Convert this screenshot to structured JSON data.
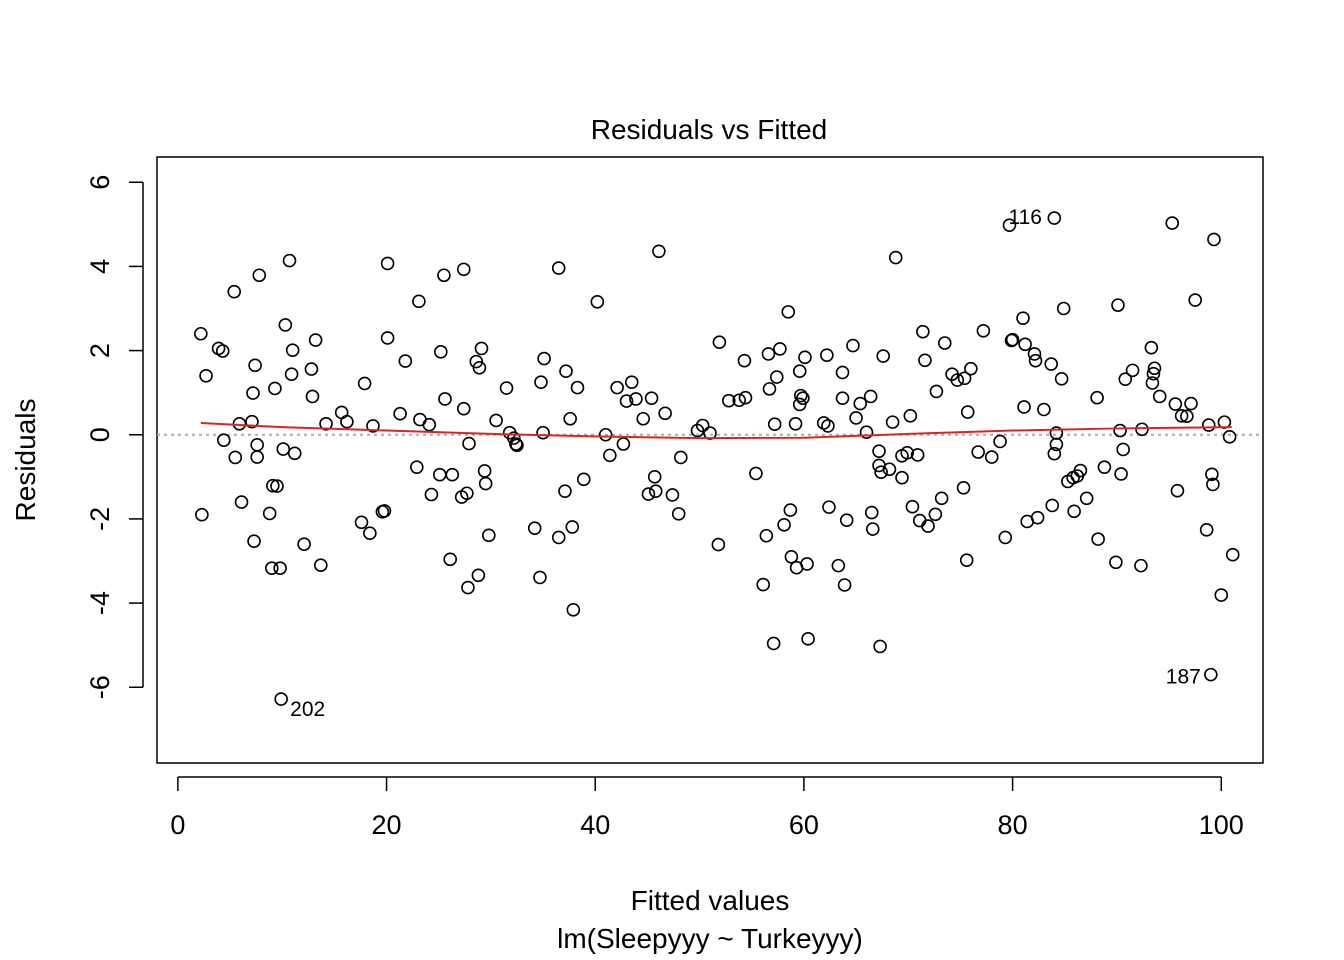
{
  "chart_data": {
    "type": "scatter",
    "title": "Residuals vs Fitted",
    "xlabel": "Fitted values",
    "sublabel": "lm(Sleepyyy ~ Turkeyyy)",
    "ylabel": "Residuals",
    "xlim": [
      -2,
      104
    ],
    "ylim": [
      -7.8,
      6.6
    ],
    "x_ticks": [
      0,
      20,
      40,
      60,
      80,
      100
    ],
    "y_ticks": [
      -6,
      -4,
      -2,
      0,
      2,
      4,
      6
    ],
    "x_tick_labels": [
      "0",
      "20",
      "40",
      "60",
      "80",
      "100"
    ],
    "y_tick_labels": [
      "-6",
      "-4",
      "-2",
      "0",
      "2",
      "4",
      "6"
    ],
    "reference_line_y": 0,
    "reference_line_color": "#aaaaaa",
    "smooth_color": "#d62728",
    "point_color": "#000000",
    "smooth": {
      "x": [
        2.2,
        10,
        20,
        30,
        40,
        50,
        60,
        70,
        80,
        90,
        101
      ],
      "y": [
        0.28,
        0.18,
        0.1,
        0.02,
        -0.04,
        -0.08,
        -0.07,
        0.02,
        0.1,
        0.15,
        0.18
      ]
    },
    "labeled_points": [
      {
        "x": 79.7,
        "y": 4.98,
        "label": "116",
        "anchor": "end-above"
      },
      {
        "x": 99.0,
        "y": -5.7,
        "label": "187",
        "anchor": "left"
      },
      {
        "x": 9.9,
        "y": -6.28,
        "label": "202",
        "anchor": "right-below"
      }
    ],
    "points": [
      [
        2.2,
        2.4
      ],
      [
        2.3,
        -1.9
      ],
      [
        2.7,
        1.4
      ],
      [
        3.9,
        2.05
      ],
      [
        4.3,
        1.99
      ],
      [
        4.4,
        -0.13
      ],
      [
        5.4,
        3.4
      ],
      [
        5.5,
        -0.54
      ],
      [
        5.9,
        0.26
      ],
      [
        6.1,
        -1.6
      ],
      [
        7.1,
        0.31
      ],
      [
        7.2,
        0.99
      ],
      [
        7.3,
        -2.53
      ],
      [
        7.4,
        1.65
      ],
      [
        7.6,
        -0.24
      ],
      [
        7.6,
        -0.53
      ],
      [
        7.8,
        3.79
      ],
      [
        8.8,
        -1.87
      ],
      [
        9.0,
        -3.17
      ],
      [
        9.1,
        -1.21
      ],
      [
        9.3,
        1.1
      ],
      [
        9.5,
        -1.22
      ],
      [
        9.8,
        -3.17
      ],
      [
        10.1,
        -0.34
      ],
      [
        10.3,
        2.61
      ],
      [
        10.7,
        4.14
      ],
      [
        10.9,
        1.44
      ],
      [
        11.0,
        2.01
      ],
      [
        11.2,
        -0.44
      ],
      [
        12.1,
        -2.6
      ],
      [
        12.8,
        1.56
      ],
      [
        12.9,
        0.91
      ],
      [
        13.2,
        2.25
      ],
      [
        13.7,
        -3.1
      ],
      [
        14.2,
        0.26
      ],
      [
        15.7,
        0.53
      ],
      [
        16.2,
        0.31
      ],
      [
        17.6,
        -2.08
      ],
      [
        17.9,
        1.22
      ],
      [
        18.4,
        -2.34
      ],
      [
        18.7,
        0.21
      ],
      [
        19.6,
        -1.83
      ],
      [
        19.8,
        -1.81
      ],
      [
        20.1,
        2.3
      ],
      [
        20.1,
        4.07
      ],
      [
        21.3,
        0.5
      ],
      [
        21.8,
        1.75
      ],
      [
        22.9,
        -0.77
      ],
      [
        23.1,
        3.17
      ],
      [
        23.2,
        0.36
      ],
      [
        24.1,
        0.24
      ],
      [
        24.3,
        -1.42
      ],
      [
        25.1,
        -0.95
      ],
      [
        25.2,
        1.97
      ],
      [
        25.5,
        3.79
      ],
      [
        25.6,
        0.85
      ],
      [
        26.1,
        -2.96
      ],
      [
        26.3,
        -0.95
      ],
      [
        27.2,
        -1.48
      ],
      [
        27.4,
        3.93
      ],
      [
        27.4,
        0.62
      ],
      [
        27.7,
        -1.39
      ],
      [
        27.8,
        -3.63
      ],
      [
        27.9,
        -0.21
      ],
      [
        28.6,
        1.74
      ],
      [
        28.8,
        -3.34
      ],
      [
        28.9,
        1.59
      ],
      [
        29.1,
        2.05
      ],
      [
        29.4,
        -0.86
      ],
      [
        29.5,
        -1.16
      ],
      [
        29.8,
        -2.39
      ],
      [
        30.5,
        0.34
      ],
      [
        31.5,
        1.11
      ],
      [
        31.8,
        0.05
      ],
      [
        32.2,
        -0.08
      ],
      [
        32.4,
        -0.22
      ],
      [
        32.5,
        -0.25
      ],
      [
        34.2,
        -2.22
      ],
      [
        34.7,
        -3.39
      ],
      [
        34.8,
        1.25
      ],
      [
        35.0,
        0.05
      ],
      [
        35.1,
        1.81
      ],
      [
        36.5,
        3.96
      ],
      [
        36.5,
        -2.44
      ],
      [
        37.1,
        -1.34
      ],
      [
        37.2,
        1.51
      ],
      [
        37.6,
        0.38
      ],
      [
        37.8,
        -2.19
      ],
      [
        37.9,
        -4.16
      ],
      [
        38.3,
        1.12
      ],
      [
        38.9,
        -1.06
      ],
      [
        40.2,
        3.16
      ],
      [
        41.0,
        0.0
      ],
      [
        41.4,
        -0.49
      ],
      [
        42.1,
        1.12
      ],
      [
        42.7,
        -0.22
      ],
      [
        43.0,
        0.8
      ],
      [
        43.5,
        1.25
      ],
      [
        43.9,
        0.85
      ],
      [
        44.6,
        0.38
      ],
      [
        45.1,
        -1.41
      ],
      [
        45.4,
        0.87
      ],
      [
        45.7,
        -1.0
      ],
      [
        45.8,
        -1.34
      ],
      [
        46.1,
        4.36
      ],
      [
        46.7,
        0.51
      ],
      [
        47.4,
        -1.43
      ],
      [
        48.0,
        -1.88
      ],
      [
        48.2,
        -0.54
      ],
      [
        49.8,
        0.1
      ],
      [
        50.3,
        0.22
      ],
      [
        51.0,
        0.04
      ],
      [
        51.8,
        -2.61
      ],
      [
        51.9,
        2.2
      ],
      [
        52.8,
        0.81
      ],
      [
        53.8,
        0.82
      ],
      [
        54.3,
        1.76
      ],
      [
        54.4,
        0.88
      ],
      [
        55.4,
        -0.92
      ],
      [
        56.1,
        -3.56
      ],
      [
        56.4,
        -2.4
      ],
      [
        56.6,
        1.92
      ],
      [
        56.7,
        1.09
      ],
      [
        57.1,
        -4.96
      ],
      [
        57.2,
        0.25
      ],
      [
        57.4,
        1.37
      ],
      [
        57.7,
        2.04
      ],
      [
        58.1,
        -2.14
      ],
      [
        58.5,
        2.92
      ],
      [
        58.7,
        -1.79
      ],
      [
        58.8,
        -2.9
      ],
      [
        59.2,
        0.26
      ],
      [
        59.3,
        -3.16
      ],
      [
        59.6,
        1.51
      ],
      [
        59.6,
        0.72
      ],
      [
        59.7,
        0.93
      ],
      [
        59.9,
        0.87
      ],
      [
        60.1,
        1.84
      ],
      [
        60.3,
        -3.07
      ],
      [
        60.4,
        -4.85
      ],
      [
        61.9,
        0.28
      ],
      [
        62.2,
        1.89
      ],
      [
        62.3,
        0.21
      ],
      [
        62.4,
        -1.72
      ],
      [
        63.3,
        -3.11
      ],
      [
        63.7,
        0.87
      ],
      [
        63.7,
        1.48
      ],
      [
        63.9,
        -3.57
      ],
      [
        64.1,
        -2.03
      ],
      [
        64.7,
        2.12
      ],
      [
        65.0,
        0.4
      ],
      [
        65.4,
        0.74
      ],
      [
        66.0,
        0.06
      ],
      [
        66.4,
        0.91
      ],
      [
        66.5,
        -1.85
      ],
      [
        66.6,
        -2.24
      ],
      [
        67.2,
        -0.39
      ],
      [
        67.2,
        -0.73
      ],
      [
        67.3,
        -5.03
      ],
      [
        67.4,
        -0.89
      ],
      [
        67.6,
        1.87
      ],
      [
        68.2,
        -0.82
      ],
      [
        68.5,
        0.3
      ],
      [
        68.8,
        4.21
      ],
      [
        69.4,
        -1.02
      ],
      [
        69.4,
        -0.5
      ],
      [
        69.9,
        -0.43
      ],
      [
        70.4,
        -1.71
      ],
      [
        70.2,
        0.45
      ],
      [
        70.9,
        -0.48
      ],
      [
        71.1,
        -2.04
      ],
      [
        71.4,
        2.45
      ],
      [
        71.6,
        1.77
      ],
      [
        71.9,
        -2.17
      ],
      [
        72.6,
        -1.89
      ],
      [
        72.7,
        1.03
      ],
      [
        73.2,
        -1.51
      ],
      [
        73.5,
        2.18
      ],
      [
        74.2,
        1.44
      ],
      [
        74.7,
        1.3
      ],
      [
        75.3,
        -1.26
      ],
      [
        75.4,
        1.34
      ],
      [
        75.6,
        -2.98
      ],
      [
        75.7,
        0.54
      ],
      [
        76.0,
        1.57
      ],
      [
        76.7,
        -0.41
      ],
      [
        77.2,
        2.47
      ],
      [
        78.0,
        -0.53
      ],
      [
        78.8,
        -0.16
      ],
      [
        79.3,
        -2.44
      ],
      [
        79.7,
        4.98
      ],
      [
        79.9,
        2.24
      ],
      [
        80.0,
        2.26
      ],
      [
        81.0,
        2.77
      ],
      [
        81.1,
        0.66
      ],
      [
        81.2,
        2.15
      ],
      [
        81.4,
        -2.06
      ],
      [
        82.1,
        1.92
      ],
      [
        82.2,
        1.76
      ],
      [
        82.4,
        -1.97
      ],
      [
        83.0,
        0.6
      ],
      [
        83.7,
        1.68
      ],
      [
        83.8,
        -1.68
      ],
      [
        84.0,
        -0.45
      ],
      [
        84.0,
        5.15
      ],
      [
        84.2,
        -0.23
      ],
      [
        84.2,
        0.04
      ],
      [
        84.7,
        1.33
      ],
      [
        84.9,
        3.0
      ],
      [
        85.3,
        -1.11
      ],
      [
        85.8,
        -1.02
      ],
      [
        85.9,
        -1.82
      ],
      [
        86.2,
        -0.98
      ],
      [
        86.5,
        -0.85
      ],
      [
        87.1,
        -1.51
      ],
      [
        88.1,
        0.88
      ],
      [
        88.2,
        -2.48
      ],
      [
        88.8,
        -0.77
      ],
      [
        89.9,
        -3.03
      ],
      [
        90.1,
        3.08
      ],
      [
        90.3,
        0.1
      ],
      [
        90.4,
        -0.93
      ],
      [
        90.6,
        -0.35
      ],
      [
        90.8,
        1.32
      ],
      [
        91.5,
        1.53
      ],
      [
        92.3,
        -3.11
      ],
      [
        92.4,
        0.13
      ],
      [
        93.3,
        2.07
      ],
      [
        93.4,
        1.23
      ],
      [
        93.5,
        1.45
      ],
      [
        93.6,
        1.58
      ],
      [
        94.1,
        0.91
      ],
      [
        95.3,
        5.03
      ],
      [
        95.6,
        0.73
      ],
      [
        95.8,
        -1.33
      ],
      [
        96.2,
        0.45
      ],
      [
        96.7,
        0.44
      ],
      [
        97.1,
        0.74
      ],
      [
        97.5,
        3.2
      ],
      [
        98.6,
        -2.26
      ],
      [
        98.8,
        0.23
      ],
      [
        99.0,
        -5.7
      ],
      [
        99.1,
        -0.94
      ],
      [
        99.2,
        -1.18
      ],
      [
        99.3,
        4.64
      ],
      [
        100.0,
        -3.81
      ],
      [
        100.3,
        0.3
      ],
      [
        100.8,
        -0.05
      ],
      [
        101.1,
        -2.85
      ],
      [
        9.9,
        -6.28
      ]
    ]
  }
}
